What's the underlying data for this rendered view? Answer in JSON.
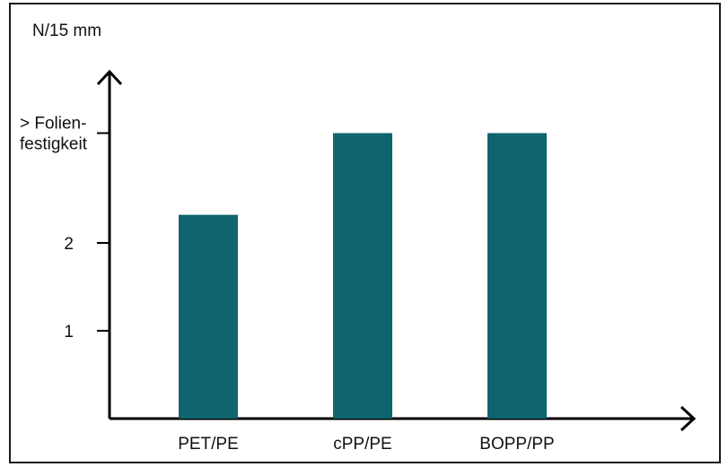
{
  "chart_data": {
    "type": "bar",
    "ylabel": "N/15 mm",
    "categories": [
      "PET/PE",
      "cPP/PE",
      "BOPP/PP"
    ],
    "values": [
      2.32,
      3.25,
      3.25
    ],
    "yticks": [
      {
        "value": 1,
        "lines": [
          "1"
        ]
      },
      {
        "value": 2,
        "lines": [
          "2"
        ]
      },
      {
        "value": 3.25,
        "lines": [
          "> Folien-",
          "festigkeit"
        ]
      }
    ],
    "ylim": [
      0,
      4
    ],
    "grid": false,
    "legend": "none",
    "colors": {
      "bar": "#0f6470",
      "axis": "#000000",
      "text": "#111111"
    }
  }
}
